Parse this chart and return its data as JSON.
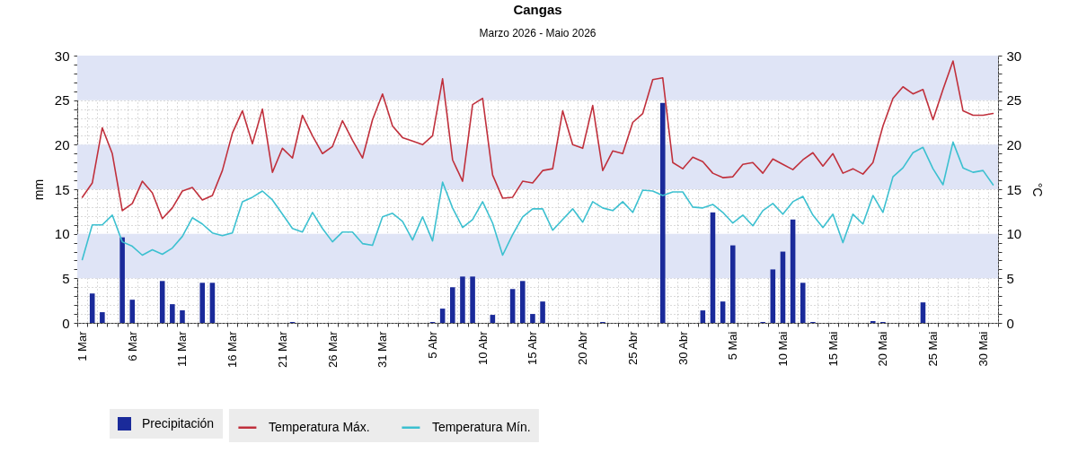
{
  "chart_data": {
    "type": "bar",
    "title": "Cangas",
    "subtitle": "Marzo 2026 - Maio 2026",
    "ylabel": "mm",
    "y2label": "°C",
    "categories": [
      "1 Mar",
      null,
      null,
      null,
      null,
      "6 Mar",
      null,
      null,
      null,
      null,
      "11 Mar",
      null,
      null,
      null,
      null,
      "16 Mar",
      null,
      null,
      null,
      null,
      "21 Mar",
      null,
      null,
      null,
      null,
      "26 Mar",
      null,
      null,
      null,
      null,
      "31 Mar",
      null,
      null,
      null,
      null,
      "5 Abr",
      null,
      null,
      null,
      null,
      "10 Abr",
      null,
      null,
      null,
      null,
      "15 Abr",
      null,
      null,
      null,
      null,
      "20 Abr",
      null,
      null,
      null,
      null,
      "25 Abr",
      null,
      null,
      null,
      null,
      "30 Abr",
      null,
      null,
      null,
      null,
      "5 Mai",
      null,
      null,
      null,
      null,
      "10 Mai",
      null,
      null,
      null,
      null,
      "15 Mai",
      null,
      null,
      null,
      null,
      "20 Mai",
      null,
      null,
      null,
      null,
      "25 Mai",
      null,
      null,
      null,
      null,
      "30 Mai",
      null
    ],
    "series": [
      {
        "name": "Precipitación",
        "color": "#1a2a9a",
        "values": [
          null,
          3.3,
          1.2,
          null,
          9.6,
          2.6,
          null,
          null,
          4.7,
          2.1,
          1.4,
          null,
          4.5,
          4.5,
          null,
          null,
          null,
          null,
          null,
          null,
          null,
          0.1,
          null,
          null,
          null,
          null,
          null,
          null,
          null,
          null,
          null,
          null,
          null,
          null,
          null,
          0.1,
          1.6,
          4.0,
          5.2,
          5.2,
          null,
          0.9,
          null,
          3.8,
          4.7,
          1.0,
          2.4,
          null,
          null,
          null,
          null,
          null,
          0.1,
          null,
          null,
          null,
          null,
          null,
          24.7,
          null,
          null,
          null,
          1.4,
          12.4,
          2.4,
          8.7,
          null,
          null,
          0.1,
          6.0,
          8.0,
          11.6,
          4.5,
          0.1,
          null,
          null,
          null,
          null,
          null,
          0.2,
          0.1,
          null,
          null,
          null,
          2.3,
          null,
          null,
          null,
          null,
          null,
          null,
          null
        ]
      },
      {
        "name": "Temperatura Máx.",
        "type": "line",
        "axis": "y2",
        "color": "#c0303c",
        "values": [
          14.1,
          15.7,
          21.9,
          19.0,
          12.6,
          13.4,
          15.9,
          14.6,
          11.7,
          12.9,
          14.8,
          15.2,
          13.8,
          14.3,
          17.1,
          21.3,
          23.8,
          20.1,
          24.0,
          16.9,
          19.6,
          18.5,
          23.3,
          21.0,
          19.0,
          19.8,
          22.7,
          20.5,
          18.5,
          22.8,
          25.7,
          22.1,
          20.8,
          20.4,
          20.0,
          21.0,
          27.4,
          18.3,
          15.9,
          24.5,
          25.2,
          16.6,
          14.0,
          14.1,
          15.9,
          15.7,
          17.1,
          17.3,
          23.8,
          20.0,
          19.6,
          24.4,
          17.1,
          19.3,
          19.0,
          22.5,
          23.5,
          27.3,
          27.5,
          18.0,
          17.3,
          18.6,
          18.1,
          16.8,
          16.3,
          16.4,
          17.8,
          18.0,
          16.8,
          18.4,
          17.8,
          17.2,
          18.3,
          19.1,
          17.6,
          19.0,
          16.8,
          17.3,
          16.7,
          18.0,
          22.1,
          25.2,
          26.5,
          25.7,
          26.2,
          22.8,
          26.2,
          29.4,
          23.8,
          23.3,
          23.3,
          23.5
        ]
      },
      {
        "name": "Temperatura Mín.",
        "type": "line",
        "axis": "y2",
        "color": "#3cc0d0",
        "values": [
          7.1,
          11.0,
          11.0,
          12.1,
          9.1,
          8.6,
          7.6,
          8.2,
          7.7,
          8.4,
          9.7,
          11.8,
          11.1,
          10.1,
          9.8,
          10.1,
          13.6,
          14.1,
          14.8,
          13.8,
          12.2,
          10.6,
          10.2,
          12.4,
          10.6,
          9.1,
          10.2,
          10.2,
          8.9,
          8.7,
          11.9,
          12.3,
          11.4,
          9.3,
          11.9,
          9.2,
          15.8,
          12.9,
          10.7,
          11.6,
          13.6,
          11.2,
          7.6,
          9.9,
          11.9,
          12.8,
          12.8,
          10.4,
          11.6,
          12.8,
          11.3,
          13.6,
          12.9,
          12.6,
          13.6,
          12.4,
          14.9,
          14.8,
          14.3,
          14.7,
          14.7,
          13.0,
          12.9,
          13.3,
          12.4,
          11.2,
          12.1,
          10.9,
          12.6,
          13.4,
          12.2,
          13.6,
          14.2,
          12.1,
          10.7,
          12.2,
          9.0,
          12.2,
          11.1,
          14.3,
          12.4,
          16.4,
          17.4,
          19.1,
          19.7,
          17.3,
          15.5,
          20.3,
          17.4,
          16.9,
          17.1,
          15.5
        ]
      }
    ],
    "ylim": [
      0,
      30
    ],
    "yticks": [
      0,
      {
        "value": 1,
        "label": null
      },
      {
        "value": 2,
        "label": null
      },
      {
        "value": 3,
        "label": null
      },
      {
        "value": 4,
        "label": null
      },
      5,
      {
        "value": 6,
        "label": null
      },
      {
        "value": 7,
        "label": null
      },
      {
        "value": 8,
        "label": null
      },
      {
        "value": 9,
        "label": null
      },
      10,
      {
        "value": 11,
        "label": null
      },
      {
        "value": 12,
        "label": null
      },
      {
        "value": 13,
        "label": null
      },
      {
        "value": 14,
        "label": null
      },
      15,
      {
        "value": 16,
        "label": null
      },
      {
        "value": 17,
        "label": null
      },
      {
        "value": 18,
        "label": null
      },
      {
        "value": 19,
        "label": null
      },
      20,
      {
        "value": 21,
        "label": null
      },
      {
        "value": 22,
        "label": null
      },
      {
        "value": 23,
        "label": null
      },
      {
        "value": 24,
        "label": null
      },
      25,
      {
        "value": 26,
        "label": null
      },
      {
        "value": 27,
        "label": null
      },
      {
        "value": 28,
        "label": null
      },
      {
        "value": 29,
        "label": null
      },
      30
    ],
    "y2lim": [
      0,
      30
    ],
    "y2ticks": [
      0,
      {
        "value": 1,
        "label": null
      },
      {
        "value": 2,
        "label": null
      },
      {
        "value": 3,
        "label": null
      },
      {
        "value": 4,
        "label": null
      },
      5,
      {
        "value": 6,
        "label": null
      },
      {
        "value": 7,
        "label": null
      },
      {
        "value": 8,
        "label": null
      },
      {
        "value": 9,
        "label": null
      },
      10,
      {
        "value": 11,
        "label": null
      },
      {
        "value": 12,
        "label": null
      },
      {
        "value": 13,
        "label": null
      },
      {
        "value": 14,
        "label": null
      },
      15,
      {
        "value": 16,
        "label": null
      },
      {
        "value": 17,
        "label": null
      },
      {
        "value": 18,
        "label": null
      },
      {
        "value": 19,
        "label": null
      },
      20,
      {
        "value": 21,
        "label": null
      },
      {
        "value": 22,
        "label": null
      },
      {
        "value": 23,
        "label": null
      },
      {
        "value": 24,
        "label": null
      },
      25,
      {
        "value": 26,
        "label": null
      },
      {
        "value": 27,
        "label": null
      },
      {
        "value": 28,
        "label": null
      },
      {
        "value": 29,
        "label": null
      },
      30
    ],
    "bands": [
      {
        "axis": "y",
        "from": 25,
        "to": 30,
        "color": "#dfe4f6"
      },
      {
        "axis": "y",
        "from": 15,
        "to": 20,
        "color": "#dfe4f6"
      },
      {
        "axis": "y",
        "from": 5,
        "to": 10,
        "color": "#dfe4f6"
      }
    ],
    "grid": true,
    "legend": "bottom left"
  }
}
